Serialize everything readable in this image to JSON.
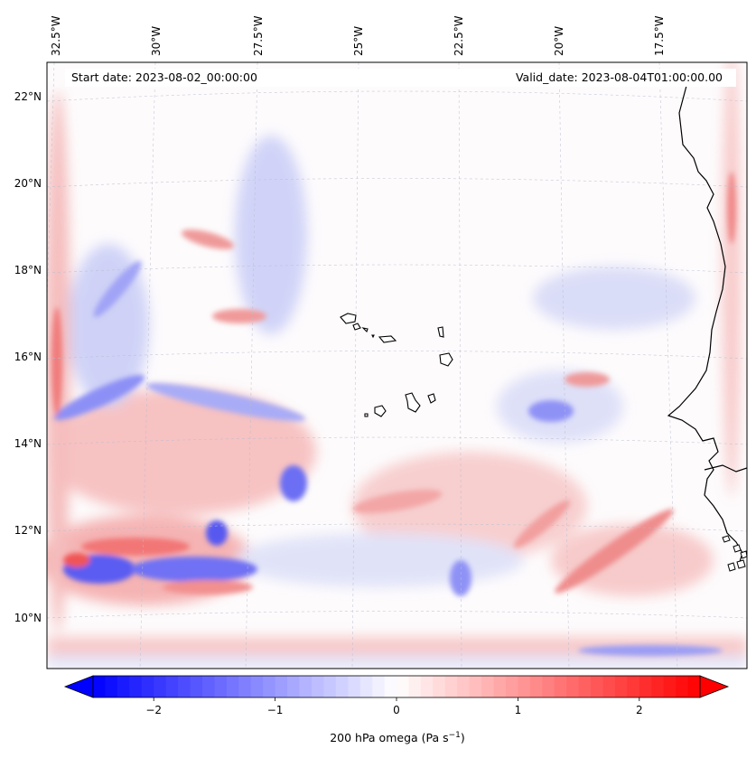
{
  "map": {
    "projection": "lambert-conformal",
    "lon_labels_top": [
      "32.5°W",
      "30°W",
      "27.5°W",
      "25°W",
      "22.5°W",
      "20°W",
      "17.5°W"
    ],
    "lat_labels_left": [
      "22°N",
      "20°N",
      "18°N",
      "16°N",
      "14°N",
      "12°N",
      "10°N"
    ],
    "gridlines": true,
    "coastlines": true,
    "features": [
      "West African coast",
      "Cape Verde islands"
    ]
  },
  "annotations": {
    "start_date": "Start date: 2023-08-02_00:00:00",
    "valid_date": "Valid_date: 2023-08-04T01:00:00.00"
  },
  "colorbar": {
    "cmap": "bwr",
    "min": -2.5,
    "max": 2.5,
    "extend": "both",
    "ticks": [
      "−2",
      "−1",
      "0",
      "1",
      "2"
    ],
    "tick_values": [
      -2,
      -1,
      0,
      1,
      2
    ],
    "label_prefix": "200 hPa omega (Pa s",
    "label_exp": "−1",
    "label_suffix": ")"
  },
  "colors": {
    "negative": "#0000ff",
    "neutral": "#ffffff",
    "positive": "#ff0000"
  }
}
